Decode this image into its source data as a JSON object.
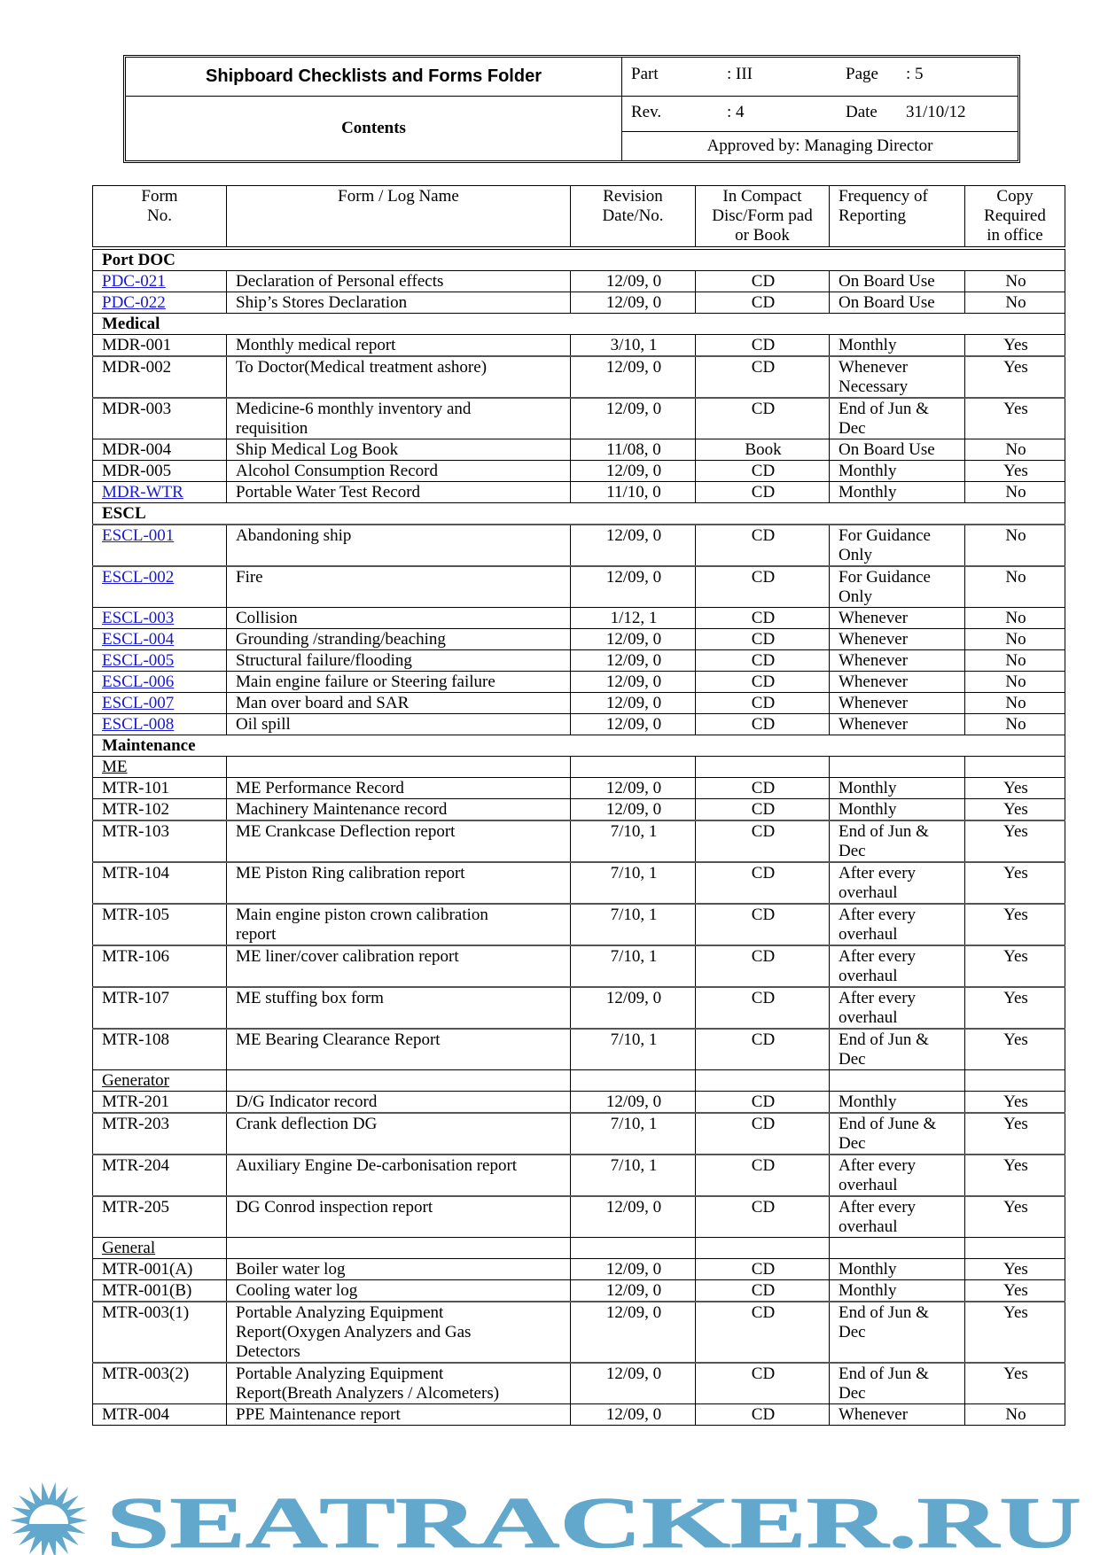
{
  "header": {
    "title": "Shipboard Checklists and Forms Folder",
    "subtitle": "Contents",
    "part_label": "Part",
    "part_value": ": III",
    "page_label": "Page",
    "page_value": ": 5",
    "rev_label": "Rev.",
    "rev_value": ": 4",
    "date_label": "Date",
    "date_value": "31/10/12",
    "approved": "Approved by: Managing Director"
  },
  "table": {
    "columns": [
      "Form\nNo.",
      "Form / Log Name",
      "Revision\nDate/No.",
      "In Compact\nDisc/Form pad\nor Book",
      "Frequency of\nReporting",
      "Copy\nRequired\nin office"
    ],
    "rows": [
      {
        "section": "Port DOC"
      },
      {
        "cells": [
          "PDC-021",
          "Declaration of Personal effects",
          "12/09, 0",
          "CD",
          "On Board Use",
          "No"
        ],
        "link": true
      },
      {
        "cells": [
          "PDC-022",
          "Ship’s Stores Declaration",
          "12/09, 0",
          "CD",
          "On Board Use",
          "No"
        ],
        "link": true
      },
      {
        "section": "Medical"
      },
      {
        "cells": [
          "MDR-001",
          "Monthly medical report",
          "3/10, 1",
          "CD",
          "Monthly",
          "Yes"
        ]
      },
      {
        "cells": [
          "MDR-002",
          "To Doctor(Medical treatment ashore)",
          "12/09, 0",
          "CD",
          "Whenever\nNecessary",
          "Yes"
        ]
      },
      {
        "cells": [
          "MDR-003",
          "Medicine-6 monthly inventory and\nrequisition",
          "12/09, 0",
          "CD",
          "End of Jun &\nDec",
          "Yes"
        ]
      },
      {
        "cells": [
          "MDR-004",
          "Ship Medical Log Book",
          "11/08, 0",
          "Book",
          "On Board Use",
          "No"
        ]
      },
      {
        "cells": [
          "MDR-005",
          "Alcohol Consumption Record",
          "12/09, 0",
          "CD",
          "Monthly",
          "Yes"
        ]
      },
      {
        "cells": [
          "MDR-WTR",
          "Portable Water Test Record",
          "11/10, 0",
          "CD",
          "Monthly",
          "No"
        ],
        "link": true
      },
      {
        "section": "ESCL"
      },
      {
        "cells": [
          "ESCL-001",
          "Abandoning ship",
          "12/09, 0",
          "CD",
          "For Guidance\nOnly",
          "No"
        ],
        "link": true
      },
      {
        "cells": [
          "ESCL-002",
          "Fire",
          "12/09, 0",
          "CD",
          "For Guidance\nOnly",
          "No"
        ],
        "link": true
      },
      {
        "cells": [
          "ESCL-003",
          "Collision",
          "1/12, 1",
          "CD",
          "Whenever",
          "No"
        ],
        "link": true
      },
      {
        "cells": [
          "ESCL-004",
          "Grounding /stranding/beaching",
          "12/09, 0",
          "CD",
          "Whenever",
          "No"
        ],
        "link": true
      },
      {
        "cells": [
          "ESCL-005",
          "Structural failure/flooding",
          "12/09, 0",
          "CD",
          "Whenever",
          "No"
        ],
        "link": true
      },
      {
        "cells": [
          "ESCL-006",
          "Main engine failure or Steering failure",
          "12/09, 0",
          "CD",
          "Whenever",
          "No"
        ],
        "link": true
      },
      {
        "cells": [
          "ESCL-007",
          "Man over board and SAR",
          "12/09, 0",
          "CD",
          "Whenever",
          "No"
        ],
        "link": true
      },
      {
        "cells": [
          "ESCL-008",
          "Oil spill",
          "12/09, 0",
          "CD",
          "Whenever",
          "No"
        ],
        "link": true
      },
      {
        "section": "Maintenance"
      },
      {
        "subsection": "ME"
      },
      {
        "cells": [
          "MTR-101",
          "ME Performance Record",
          "12/09, 0",
          "CD",
          "Monthly",
          "Yes"
        ]
      },
      {
        "cells": [
          "MTR-102",
          "Machinery Maintenance record",
          "12/09, 0",
          "CD",
          "Monthly",
          "Yes"
        ]
      },
      {
        "cells": [
          "MTR-103",
          "ME Crankcase Deflection report",
          "7/10, 1",
          "CD",
          "End of Jun &\nDec",
          "Yes"
        ]
      },
      {
        "cells": [
          "MTR-104",
          "ME Piston Ring calibration report",
          "7/10, 1",
          "CD",
          "After every\noverhaul",
          "Yes"
        ]
      },
      {
        "cells": [
          "MTR-105",
          "Main engine piston crown calibration\nreport",
          "7/10, 1",
          "CD",
          "After every\noverhaul",
          "Yes"
        ]
      },
      {
        "cells": [
          "MTR-106",
          "ME liner/cover calibration report",
          "7/10, 1",
          "CD",
          "After every\noverhaul",
          "Yes"
        ]
      },
      {
        "cells": [
          "MTR-107",
          "ME stuffing box form",
          "12/09, 0",
          "CD",
          "After every\noverhaul",
          "Yes"
        ]
      },
      {
        "cells": [
          "MTR-108",
          "ME Bearing Clearance Report",
          "7/10, 1",
          "CD",
          "End of Jun &\nDec",
          "Yes"
        ]
      },
      {
        "subsection": "Generator"
      },
      {
        "cells": [
          "MTR-201",
          "D/G Indicator record",
          "12/09, 0",
          "CD",
          "Monthly",
          "Yes"
        ]
      },
      {
        "cells": [
          "MTR-203",
          "Crank deflection DG",
          "7/10, 1",
          "CD",
          "End of June &\nDec",
          "Yes"
        ]
      },
      {
        "cells": [
          "MTR-204",
          "Auxiliary Engine De-carbonisation report",
          "7/10, 1",
          "CD",
          "After every\noverhaul",
          "Yes"
        ]
      },
      {
        "cells": [
          "MTR-205",
          "DG Conrod inspection report",
          "12/09, 0",
          "CD",
          "After every\noverhaul",
          "Yes"
        ]
      },
      {
        "subsection": "General"
      },
      {
        "cells": [
          "MTR-001(A)",
          "Boiler water log",
          "12/09, 0",
          "CD",
          "Monthly",
          "Yes"
        ]
      },
      {
        "cells": [
          "MTR-001(B)",
          "Cooling water log",
          "12/09, 0",
          "CD",
          "Monthly",
          "Yes"
        ]
      },
      {
        "cells": [
          "MTR-003(1)",
          "Portable Analyzing Equipment\nReport(Oxygen Analyzers and Gas\nDetectors",
          "12/09, 0",
          "CD",
          "End of Jun &\nDec",
          "Yes"
        ]
      },
      {
        "cells": [
          "MTR-003(2)",
          "Portable Analyzing Equipment\nReport(Breath Analyzers / Alcometers)",
          "12/09, 0",
          "CD",
          "End of Jun &\nDec",
          "Yes"
        ]
      },
      {
        "cells": [
          "MTR-004",
          "PPE Maintenance report",
          "12/09, 0",
          "CD",
          "Whenever",
          "No"
        ]
      }
    ]
  },
  "watermark": {
    "text": "SEATRACKER.RU",
    "color": "#62a8cc"
  },
  "colors": {
    "link": "#1a1acc"
  }
}
